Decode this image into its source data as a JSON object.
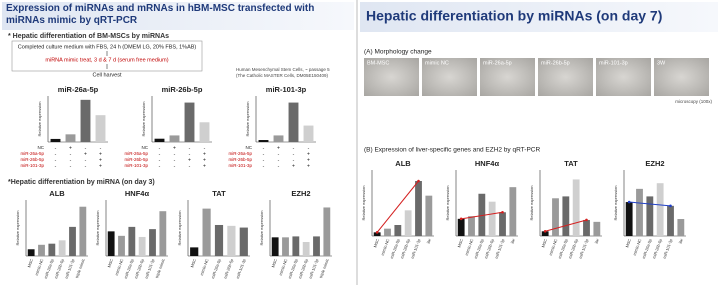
{
  "left_panel": {
    "title": "Expression of miRNAs  and mRNAs in hBM-MSC transfected with miRNAs mimic by qRT-PCR",
    "section1": "* Hepatic differentiation of BM-MSCs by miRNAs",
    "step1": "Completed culture medium with FBS, 24 h (DMEM LG, 20% FBS, 1%AB)",
    "step2": "miRNA mimic treat, 3 d & 7 d (serum free medium)",
    "step3": "Cell harvest",
    "cells_note_1": "Human Mesenchymal Stem Cells, ~ passage 5",
    "cells_note_2": "(The Catholic MASTER Cells, DM05E150409)",
    "section2": "*Hepatic differentiation by miRNA (on day 3)"
  },
  "right_panel": {
    "title": "Hepatic differentiation by miRNAs (on day 7)",
    "section_a": "(A) Morphology change",
    "images": [
      "BM-MSC",
      "mimic NC",
      "miR-26a-5p",
      "miR-26b-5p",
      "miR-101-3p",
      "3W"
    ],
    "image_note": "microscopy (100x)",
    "section_b": "(B) Expression of liver-specific genes and EZH2 by qRT-PCR"
  },
  "chart_data": [
    {
      "type": "bar",
      "title": "miR-26a-5p",
      "ylabel": "Relative expression",
      "values": [
        0.4,
        1,
        5.5,
        3.5
      ],
      "colors": [
        "#111111",
        "#9a9a9a",
        "#6a6a6a",
        "#cfcfcf"
      ],
      "ylim": [
        0,
        6
      ],
      "table": [
        {
          "label": "NC",
          "signs": [
            "-",
            "+",
            "-",
            "-"
          ]
        },
        {
          "label": "miR-26a-5p",
          "signs": [
            "-",
            "-",
            "+",
            "+"
          ]
        },
        {
          "label": "miR-26b-5p",
          "signs": [
            "-",
            "-",
            "-",
            "+"
          ]
        },
        {
          "label": "miR-101-3p",
          "signs": [
            "-",
            "-",
            "-",
            "+"
          ]
        }
      ]
    },
    {
      "type": "bar",
      "title": "miR-26b-5p",
      "ylabel": "Relative expression",
      "values": [
        0.5,
        1,
        6,
        3
      ],
      "colors": [
        "#111111",
        "#9a9a9a",
        "#6a6a6a",
        "#cfcfcf"
      ],
      "ylim": [
        0,
        7
      ],
      "table": [
        {
          "label": "NC",
          "signs": [
            "-",
            "+",
            "-",
            "-"
          ]
        },
        {
          "label": "miR-26a-5p",
          "signs": [
            "-",
            "-",
            "-",
            "+"
          ]
        },
        {
          "label": "miR-26b-5p",
          "signs": [
            "-",
            "-",
            "+",
            "+"
          ]
        },
        {
          "label": "miR-101-3p",
          "signs": [
            "-",
            "-",
            "-",
            "+"
          ]
        }
      ]
    },
    {
      "type": "bar",
      "title": "miR-101-3p",
      "ylabel": "Relative expression",
      "values": [
        0.3,
        1,
        6,
        2.5
      ],
      "colors": [
        "#111111",
        "#9a9a9a",
        "#6a6a6a",
        "#cfcfcf"
      ],
      "ylim": [
        0,
        7
      ],
      "table": [
        {
          "label": "NC",
          "signs": [
            "-",
            "+",
            "-",
            "-"
          ]
        },
        {
          "label": "miR-26a-5p",
          "signs": [
            "-",
            "-",
            "-",
            "+"
          ]
        },
        {
          "label": "miR-26b-5p",
          "signs": [
            "-",
            "-",
            "-",
            "+"
          ]
        },
        {
          "label": "miR-101-3p",
          "signs": [
            "-",
            "-",
            "+",
            "+"
          ]
        }
      ]
    },
    {
      "type": "bar",
      "title": "ALB",
      "ylabel": "Relative expression",
      "categories": [
        "MSC",
        "mimic-NC",
        "miR-26a-5p",
        "miR-26b-5p",
        "miR-101-3p",
        "triple mimic"
      ],
      "values": [
        0.3,
        0.5,
        0.55,
        0.7,
        1.3,
        2.2
      ],
      "colors": [
        "#111111",
        "#9a9a9a",
        "#6a6a6a",
        "#cfcfcf",
        "#6a6a6a",
        "#9a9a9a"
      ],
      "ylim": [
        0,
        2.5
      ]
    },
    {
      "type": "bar",
      "title": "HNF4α",
      "ylabel": "Relative expression",
      "categories": [
        "MSC",
        "mimic-NC",
        "miR-26a-5p",
        "miR-26b-5p",
        "miR-101-3p",
        "triple mimic"
      ],
      "values": [
        1.1,
        0.9,
        1.3,
        0.85,
        1.2,
        2.0
      ],
      "colors": [
        "#111111",
        "#9a9a9a",
        "#6a6a6a",
        "#cfcfcf",
        "#6a6a6a",
        "#9a9a9a"
      ],
      "ylim": [
        0,
        2.5
      ]
    },
    {
      "type": "bar",
      "title": "TAT",
      "ylabel": "Relative expression",
      "categories": [
        "MSC",
        "mimic-NC",
        "miR-26a-5p",
        "miR-26b-5p",
        "miR-101-3p"
      ],
      "values": [
        1.0,
        5.5,
        3.6,
        3.5,
        3.3
      ],
      "colors": [
        "#111111",
        "#9a9a9a",
        "#6a6a6a",
        "#cfcfcf",
        "#6a6a6a"
      ],
      "ylim": [
        0,
        6.5
      ]
    },
    {
      "type": "bar",
      "title": "EZH2",
      "ylabel": "Relative expression",
      "categories": [
        "MSC",
        "mimic-NC",
        "miR-26a-5p",
        "miR-26b-5p",
        "miR-101-3p",
        "triple mimic"
      ],
      "values": [
        1.0,
        1.0,
        1.05,
        0.75,
        1.05,
        2.6
      ],
      "colors": [
        "#111111",
        "#9a9a9a",
        "#6a6a6a",
        "#cfcfcf",
        "#6a6a6a",
        "#9a9a9a"
      ],
      "ylim": [
        0,
        3
      ]
    },
    {
      "type": "bar",
      "title": "ALB",
      "ylabel": "Relative expression",
      "categories": [
        "MSC",
        "mimic-NC",
        "miR-26a-5p",
        "miR-26b-5p",
        "miR-101-3p",
        "3w"
      ],
      "values": [
        1,
        2,
        3,
        7,
        15,
        11
      ],
      "colors": [
        "#111111",
        "#9a9a9a",
        "#6a6a6a",
        "#cfcfcf",
        "#6a6a6a",
        "#9a9a9a"
      ],
      "ylim": [
        0,
        18
      ],
      "trend": {
        "color": "#d42020",
        "from": 0,
        "to": 4
      }
    },
    {
      "type": "bar",
      "title": "HNF4α",
      "ylabel": "Relative expression",
      "categories": [
        "MSC",
        "mimic-NC",
        "miR-26a-5p",
        "miR-26b-5p",
        "miR-101-3p",
        "3w"
      ],
      "values": [
        1.3,
        1.5,
        3.2,
        2.6,
        1.8,
        3.7
      ],
      "colors": [
        "#111111",
        "#9a9a9a",
        "#6a6a6a",
        "#cfcfcf",
        "#6a6a6a",
        "#9a9a9a"
      ],
      "ylim": [
        0,
        5
      ],
      "trend": {
        "color": "#d42020",
        "from": 0,
        "to": 4
      }
    },
    {
      "type": "bar",
      "title": "TAT",
      "ylabel": "Relative expression",
      "categories": [
        "MSC",
        "mimic-NC",
        "miR-26a-5p",
        "miR-26b-5p",
        "miR-101-3p",
        "3w"
      ],
      "values": [
        0.5,
        4,
        4.2,
        6,
        1.7,
        1.5
      ],
      "colors": [
        "#111111",
        "#9a9a9a",
        "#6a6a6a",
        "#cfcfcf",
        "#6a6a6a",
        "#9a9a9a"
      ],
      "ylim": [
        0,
        7
      ],
      "trend": {
        "color": "#d42020",
        "from": 0,
        "to": 4
      }
    },
    {
      "type": "bar",
      "title": "EZH2",
      "ylabel": "Relative expression",
      "categories": [
        "MSC",
        "mimic-NC",
        "miR-26a-5p",
        "miR-26b-5p",
        "miR-101-3p",
        "3w"
      ],
      "values": [
        1.8,
        2.5,
        2.1,
        2.8,
        1.6,
        0.9
      ],
      "colors": [
        "#111111",
        "#9a9a9a",
        "#6a6a6a",
        "#cfcfcf",
        "#6a6a6a",
        "#9a9a9a"
      ],
      "ylim": [
        0,
        3.5
      ],
      "trend": {
        "color": "#2040c8",
        "from": 0,
        "to": 4
      }
    }
  ]
}
